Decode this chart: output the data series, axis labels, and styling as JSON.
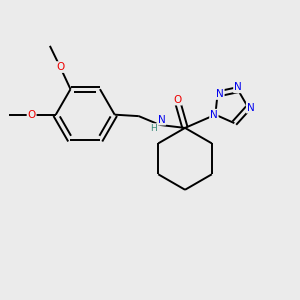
{
  "background_color": "#ebebeb",
  "bond_color": "#000000",
  "atom_colors": {
    "N": "#0000ee",
    "O": "#ee0000",
    "H": "#3a8a7a",
    "C": "#000000"
  },
  "figsize": [
    3.0,
    3.0
  ],
  "dpi": 100
}
